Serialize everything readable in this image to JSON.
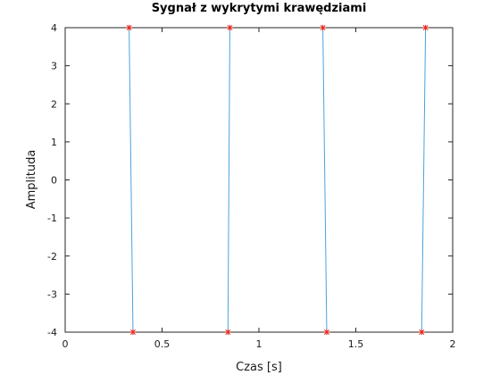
{
  "chart_data": {
    "type": "line",
    "title": "Sygnał z wykrytymi krawędziami",
    "xlabel": "Czas [s]",
    "ylabel": "Amplituda",
    "xlim": [
      0,
      2
    ],
    "ylim": [
      -4,
      4
    ],
    "xticks": [
      0,
      0.5,
      1,
      1.5,
      2
    ],
    "xtick_labels": [
      "0",
      "0.5",
      "1",
      "1.5",
      "2"
    ],
    "yticks": [
      4,
      3,
      2,
      1,
      0,
      -1,
      -2,
      -3,
      -4
    ],
    "ytick_labels": [
      "4",
      "3",
      "2",
      "1",
      "0",
      "-1",
      "-2",
      "-3",
      "-4"
    ],
    "grid": false,
    "signal_color": "#4aa3df",
    "marker_color": "#e8261f",
    "signal_segments": [
      {
        "x": [
          0.33,
          0.35
        ],
        "y": [
          4,
          -4
        ]
      },
      {
        "x": [
          0.84,
          0.85
        ],
        "y": [
          -4,
          4
        ]
      },
      {
        "x": [
          1.33,
          1.35
        ],
        "y": [
          4,
          -4
        ]
      },
      {
        "x": [
          1.84,
          1.86
        ],
        "y": [
          -4,
          4
        ]
      }
    ],
    "edge_markers": {
      "x": [
        0.33,
        0.35,
        0.84,
        0.85,
        1.33,
        1.35,
        1.84,
        1.86
      ],
      "y": [
        4,
        -4,
        -4,
        4,
        4,
        -4,
        -4,
        4
      ]
    }
  }
}
